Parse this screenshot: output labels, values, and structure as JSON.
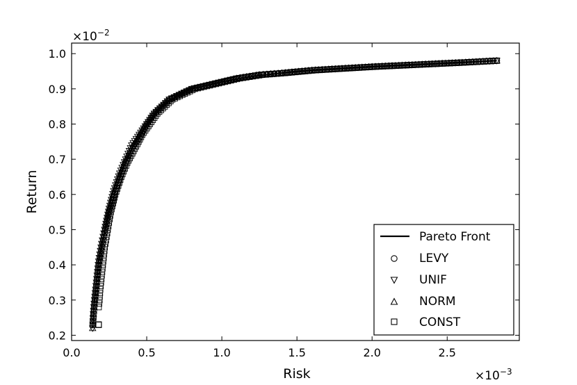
{
  "chart_data": {
    "type": "scatter",
    "xlabel": "Risk",
    "ylabel": "Return",
    "x_scale_label": "×10",
    "x_scale_exp": "−3",
    "y_scale_label": "×10",
    "y_scale_exp": "−2",
    "xlim": [
      0.0,
      2.98
    ],
    "ylim": [
      0.185,
      1.03
    ],
    "x_ticks": [
      0.0,
      0.5,
      1.0,
      1.5,
      2.0,
      2.5
    ],
    "x_tick_labels": [
      "0.0",
      "0.5",
      "1.0",
      "1.5",
      "2.0",
      "2.5"
    ],
    "y_ticks": [
      0.2,
      0.3,
      0.4,
      0.5,
      0.6,
      0.7,
      0.8,
      0.9,
      1.0
    ],
    "y_tick_labels": [
      "0.2",
      "0.3",
      "0.4",
      "0.5",
      "0.6",
      "0.7",
      "0.8",
      "0.9",
      "1.0"
    ],
    "grid": false,
    "legend_position": "lower-right",
    "series": [
      {
        "name": "Pareto Front",
        "kind": "line",
        "color": "#000000",
        "x": [
          0.14,
          0.15,
          0.16,
          0.18,
          0.2,
          0.25,
          0.3,
          0.35,
          0.4,
          0.5,
          0.6,
          0.7,
          0.8,
          1.0,
          1.2,
          1.5,
          2.0,
          2.5,
          2.83
        ],
        "y": [
          0.22,
          0.29,
          0.33,
          0.41,
          0.46,
          0.55,
          0.62,
          0.68,
          0.73,
          0.8,
          0.85,
          0.88,
          0.9,
          0.92,
          0.935,
          0.95,
          0.963,
          0.973,
          0.98
        ]
      },
      {
        "name": "LEVY",
        "kind": "markers",
        "marker": "circle",
        "x": [
          0.14,
          0.145,
          0.15,
          0.16,
          0.17,
          0.18,
          0.2,
          0.22,
          0.25,
          0.28,
          0.32,
          0.36,
          0.4,
          0.45,
          0.5,
          0.55,
          0.6,
          0.65,
          0.7,
          0.8,
          0.9,
          1.0,
          1.1,
          1.25,
          1.4,
          1.6,
          1.8,
          2.0,
          2.2,
          2.4,
          2.6,
          2.83
        ],
        "y": [
          0.23,
          0.25,
          0.28,
          0.32,
          0.36,
          0.4,
          0.45,
          0.49,
          0.55,
          0.6,
          0.65,
          0.69,
          0.73,
          0.76,
          0.8,
          0.83,
          0.85,
          0.87,
          0.88,
          0.9,
          0.91,
          0.92,
          0.93,
          0.94,
          0.945,
          0.953,
          0.958,
          0.963,
          0.967,
          0.971,
          0.975,
          0.98
        ]
      },
      {
        "name": "UNIF",
        "kind": "markers",
        "marker": "triangle-down",
        "x": [
          0.14,
          0.145,
          0.15,
          0.16,
          0.17,
          0.18,
          0.2,
          0.22,
          0.25,
          0.28,
          0.32,
          0.36,
          0.4,
          0.45,
          0.5,
          0.55,
          0.6,
          0.65,
          0.7,
          0.8,
          0.9,
          1.0,
          1.1,
          1.25,
          1.4,
          1.6,
          1.8,
          2.0,
          2.2,
          2.4,
          2.6,
          2.83
        ],
        "y": [
          0.22,
          0.26,
          0.29,
          0.33,
          0.37,
          0.41,
          0.46,
          0.5,
          0.56,
          0.61,
          0.66,
          0.7,
          0.74,
          0.77,
          0.8,
          0.83,
          0.85,
          0.87,
          0.88,
          0.9,
          0.91,
          0.92,
          0.93,
          0.94,
          0.945,
          0.953,
          0.958,
          0.963,
          0.967,
          0.971,
          0.975,
          0.98
        ]
      },
      {
        "name": "NORM",
        "kind": "markers",
        "marker": "triangle-up",
        "x": [
          0.14,
          0.145,
          0.15,
          0.16,
          0.17,
          0.18,
          0.2,
          0.22,
          0.25,
          0.28,
          0.32,
          0.36,
          0.4,
          0.45,
          0.5,
          0.55,
          0.6,
          0.65,
          0.7,
          0.8,
          0.9,
          1.0,
          1.1,
          1.25,
          1.4,
          1.6,
          1.8,
          2.0,
          2.2,
          2.4,
          2.6,
          2.83
        ],
        "y": [
          0.22,
          0.26,
          0.28,
          0.32,
          0.36,
          0.4,
          0.45,
          0.5,
          0.56,
          0.6,
          0.65,
          0.7,
          0.73,
          0.77,
          0.8,
          0.83,
          0.85,
          0.87,
          0.88,
          0.9,
          0.91,
          0.92,
          0.93,
          0.94,
          0.945,
          0.953,
          0.958,
          0.963,
          0.967,
          0.971,
          0.975,
          0.98
        ]
      },
      {
        "name": "CONST",
        "kind": "markers",
        "marker": "square",
        "x": [
          0.18,
          0.18,
          0.185,
          0.19,
          0.2,
          0.21,
          0.22,
          0.24,
          0.26,
          0.29,
          0.33,
          0.37,
          0.42,
          0.47,
          0.52,
          0.57,
          0.62,
          0.67,
          0.72,
          0.82,
          0.92,
          1.02,
          1.12,
          1.27,
          1.42,
          1.62,
          1.82,
          2.02,
          2.22,
          2.42,
          2.62,
          2.83
        ],
        "y": [
          0.23,
          0.28,
          0.3,
          0.33,
          0.37,
          0.41,
          0.45,
          0.5,
          0.55,
          0.6,
          0.65,
          0.69,
          0.73,
          0.77,
          0.8,
          0.83,
          0.85,
          0.87,
          0.88,
          0.9,
          0.91,
          0.92,
          0.93,
          0.94,
          0.945,
          0.953,
          0.958,
          0.963,
          0.967,
          0.971,
          0.975,
          0.98
        ]
      }
    ]
  }
}
